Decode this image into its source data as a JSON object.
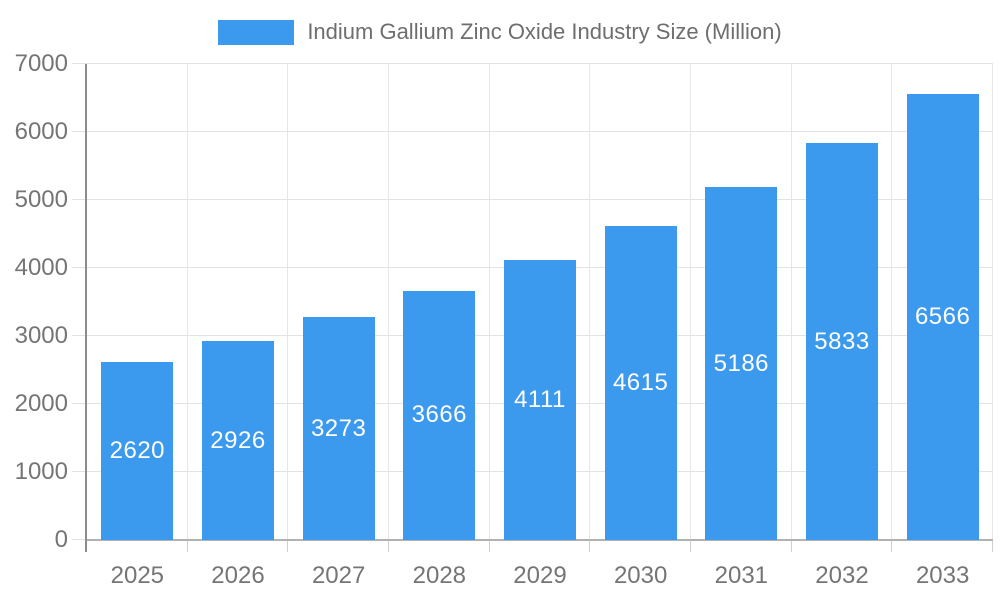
{
  "legend": {
    "label": "Indium Gallium Zinc Oxide Industry Size (Million)"
  },
  "colors": {
    "bar": "#3B99EE",
    "bar_value_text": "#FFFFFF",
    "legend_text": "#6E6E6E",
    "axis_text": "#757575",
    "gridline": "#E3E3E3",
    "vertical_gridline": "#E6E6E6",
    "tick": "#CFCFCF",
    "y_axis_line": "#8C8C8C",
    "x_axis_line": "#B2B2B2",
    "background": "#FFFFFF"
  },
  "chart_data": {
    "type": "bar",
    "title": "",
    "xlabel": "",
    "ylabel": "",
    "series_name": "Indium Gallium Zinc Oxide Industry Size (Million)",
    "categories": [
      "2025",
      "2026",
      "2027",
      "2028",
      "2029",
      "2030",
      "2031",
      "2032",
      "2033"
    ],
    "values": [
      2620,
      2926,
      3273,
      3666,
      4111,
      4615,
      5186,
      5833,
      6566
    ],
    "ylim": [
      0,
      7000
    ],
    "yticks": [
      0,
      1000,
      2000,
      3000,
      4000,
      5000,
      6000,
      7000
    ],
    "grid": true,
    "legend_position": "top-center",
    "bar_value_labels": "inside-center"
  }
}
